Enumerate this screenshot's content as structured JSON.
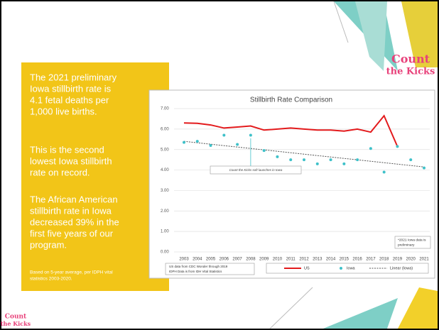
{
  "slide": {
    "paragraphs": [
      [
        "The 2021 preliminary",
        "Iowa stillbirth rate is",
        "4.1 fetal deaths per",
        "1,000 live births."
      ],
      [
        "This is the second",
        "lowest Iowa stillbirth",
        "rate on record."
      ],
      [
        "The African American",
        "stillbirth rate in Iowa",
        "decreased 39% in the",
        "first five years of our",
        "program."
      ]
    ],
    "footnote": [
      "Based on 5-year average, per IDPH vital",
      "statistics 2003-2020."
    ],
    "logo": [
      "Count",
      "the Kicks"
    ]
  },
  "chart_data": {
    "type": "line",
    "title": "Stillbirth Rate Comparison",
    "categories": [
      "2003",
      "2004",
      "2005",
      "2006",
      "2007",
      "2008",
      "2009",
      "2010",
      "2011",
      "2012",
      "2013",
      "2014",
      "2015",
      "2016",
      "2017",
      "2018",
      "2019",
      "2020",
      "2021"
    ],
    "series": [
      {
        "name": "US",
        "color": "#e31a1c",
        "style": "line",
        "values": [
          6.3,
          6.28,
          6.2,
          6.05,
          6.1,
          6.15,
          5.95,
          6.0,
          6.05,
          6.0,
          5.95,
          5.95,
          5.9,
          6.0,
          5.85,
          6.65,
          5.15,
          null,
          null
        ]
      },
      {
        "name": "Iowa",
        "color": "#3fc1c9",
        "style": "dots",
        "values": [
          5.35,
          5.4,
          5.2,
          5.7,
          5.25,
          5.7,
          4.95,
          4.65,
          4.5,
          4.5,
          4.3,
          4.5,
          4.3,
          4.5,
          5.05,
          3.9,
          5.15,
          4.5,
          4.1
        ]
      }
    ],
    "trendline": {
      "name": "Linear (Iowa)",
      "color": "#555555",
      "start": 5.4,
      "end": 4.15
    },
    "ylim": [
      0,
      7
    ],
    "yticks": [
      {
        "value": 0,
        "label": "0.00"
      },
      {
        "value": 1,
        "label": "1.00"
      },
      {
        "value": 2,
        "label": "2.00"
      },
      {
        "value": 3,
        "label": "3.00"
      },
      {
        "value": 4,
        "label": "4.00"
      },
      {
        "value": 5,
        "label": "5.00"
      },
      {
        "value": 6,
        "label": "6.00"
      },
      {
        "value": 7,
        "label": "7.00"
      }
    ],
    "annotations": [
      {
        "text": "Count the Kicks soft launches in Iowa",
        "category": 5,
        "value": 5.55
      },
      {
        "text": [
          "*2021 Iowa data is",
          "preliminary"
        ]
      },
      {
        "text": [
          "US data from CDC Wonder through 2019",
          "IDPH Data is from IDH Vital Statistics"
        ]
      }
    ]
  }
}
